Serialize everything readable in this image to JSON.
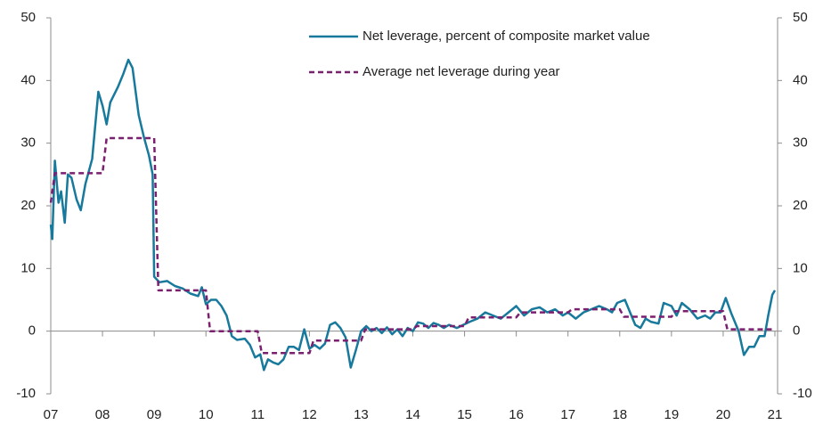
{
  "chart_data": {
    "type": "line",
    "xlim": [
      2007,
      2021
    ],
    "xticks": [
      {
        "value": 2007,
        "label": "07"
      },
      {
        "value": 2008,
        "label": "08"
      },
      {
        "value": 2009,
        "label": "09"
      },
      {
        "value": 2010,
        "label": "10"
      },
      {
        "value": 2011,
        "label": "11"
      },
      {
        "value": 2012,
        "label": "12"
      },
      {
        "value": 2013,
        "label": "13"
      },
      {
        "value": 2014,
        "label": "14"
      },
      {
        "value": 2015,
        "label": "15"
      },
      {
        "value": 2016,
        "label": "16"
      },
      {
        "value": 2017,
        "label": "17"
      },
      {
        "value": 2018,
        "label": "18"
      },
      {
        "value": 2019,
        "label": "19"
      },
      {
        "value": 2020,
        "label": "20"
      },
      {
        "value": 2021,
        "label": "21"
      }
    ],
    "ylim": [
      -10,
      50
    ],
    "yticks": [
      -10,
      0,
      10,
      20,
      30,
      40,
      50
    ],
    "y2lim": [
      -10,
      50
    ],
    "y2ticks": [
      -10,
      0,
      10,
      20,
      30,
      40,
      50
    ],
    "legend": "top-right",
    "series": [
      {
        "name": "Net leverage, percent of composite market value",
        "color": "#17799c",
        "dash": false,
        "x": [
          2007.0,
          2007.03,
          2007.08,
          2007.15,
          2007.2,
          2007.27,
          2007.33,
          2007.4,
          2007.5,
          2007.58,
          2007.67,
          2007.8,
          2007.92,
          2008.0,
          2008.08,
          2008.15,
          2008.3,
          2008.4,
          2008.5,
          2008.58,
          2008.7,
          2008.8,
          2008.9,
          2008.97,
          2009.0,
          2009.1,
          2009.25,
          2009.4,
          2009.55,
          2009.7,
          2009.85,
          2009.92,
          2010.0,
          2010.1,
          2010.2,
          2010.3,
          2010.4,
          2010.5,
          2010.6,
          2010.75,
          2010.85,
          2010.95,
          2011.05,
          2011.12,
          2011.2,
          2011.3,
          2011.4,
          2011.5,
          2011.6,
          2011.7,
          2011.8,
          2011.9,
          2012.0,
          2012.1,
          2012.2,
          2012.3,
          2012.4,
          2012.5,
          2012.6,
          2012.7,
          2012.8,
          2012.9,
          2013.0,
          2013.1,
          2013.2,
          2013.3,
          2013.4,
          2013.5,
          2013.6,
          2013.7,
          2013.8,
          2013.9,
          2014.0,
          2014.1,
          2014.2,
          2014.3,
          2014.4,
          2014.5,
          2014.6,
          2014.7,
          2014.85,
          2015.1,
          2015.25,
          2015.4,
          2015.55,
          2015.7,
          2015.85,
          2016.0,
          2016.15,
          2016.3,
          2016.45,
          2016.6,
          2016.75,
          2016.9,
          2017.0,
          2017.15,
          2017.3,
          2017.45,
          2017.6,
          2017.75,
          2017.85,
          2017.95,
          2018.1,
          2018.2,
          2018.3,
          2018.4,
          2018.5,
          2018.6,
          2018.75,
          2018.85,
          2019.0,
          2019.1,
          2019.2,
          2019.35,
          2019.5,
          2019.65,
          2019.75,
          2019.85,
          2019.95,
          2020.05,
          2020.15,
          2020.3,
          2020.4,
          2020.5,
          2020.6,
          2020.7,
          2020.8,
          2020.87,
          2020.95,
          2021.0
        ],
        "values": [
          17,
          14.7,
          27.2,
          20.5,
          22.3,
          17.3,
          25,
          24.5,
          21,
          19.3,
          23.5,
          27.5,
          38.2,
          36,
          33,
          36.5,
          39,
          41,
          43.3,
          42,
          34.5,
          31,
          28,
          25,
          8.7,
          7.8,
          8,
          7.2,
          6.8,
          6,
          5.6,
          7,
          4.3,
          5,
          5,
          4,
          2.5,
          -0.8,
          -1.4,
          -1.2,
          -2.2,
          -4.2,
          -3.7,
          -6.2,
          -4.5,
          -5,
          -5.3,
          -4.5,
          -2.5,
          -2.5,
          -3,
          0.3,
          -2.8,
          -2.2,
          -2.8,
          -2,
          1,
          1.4,
          0.5,
          -1,
          -5.8,
          -3,
          0,
          0.8,
          0,
          0.5,
          -0.3,
          0.6,
          -0.5,
          0.3,
          -0.8,
          0.5,
          0,
          1.4,
          1.2,
          0.5,
          1.3,
          1,
          0.5,
          1,
          0.5,
          1.5,
          2,
          3,
          2.5,
          2,
          3,
          4,
          2.5,
          3.5,
          3.8,
          3,
          3.5,
          2.5,
          3,
          2,
          3,
          3.5,
          4,
          3.5,
          3,
          4.5,
          5,
          3,
          1,
          0.5,
          2,
          1.5,
          1.2,
          4.5,
          4,
          2.5,
          4.5,
          3.5,
          2,
          2.5,
          2,
          3,
          3,
          5.3,
          3,
          0,
          -3.8,
          -2.5,
          -2.5,
          -0.8,
          -0.8,
          2.5,
          5.8,
          6.5
        ]
      },
      {
        "name": "Average net leverage during year",
        "color": "#7b1f6f",
        "dash": true,
        "x": [
          2007.0,
          2007.08,
          2008.0,
          2008.08,
          2009.0,
          2009.08,
          2010.0,
          2010.08,
          2011.0,
          2011.08,
          2012.0,
          2012.08,
          2013.0,
          2013.08,
          2014.0,
          2014.08,
          2015.0,
          2015.08,
          2016.0,
          2016.08,
          2017.0,
          2017.08,
          2018.0,
          2018.08,
          2019.0,
          2019.08,
          2020.0,
          2020.08,
          2021.0
        ],
        "values": [
          20.5,
          25.2,
          25.2,
          30.8,
          30.8,
          6.5,
          6.5,
          0,
          0,
          -3.5,
          -3.5,
          -1.5,
          -1.5,
          0.3,
          0.3,
          0.8,
          0.8,
          2.2,
          2.2,
          3,
          3,
          3.5,
          3.5,
          2.3,
          2.3,
          3.2,
          3.2,
          0.3,
          0.3
        ]
      }
    ]
  }
}
